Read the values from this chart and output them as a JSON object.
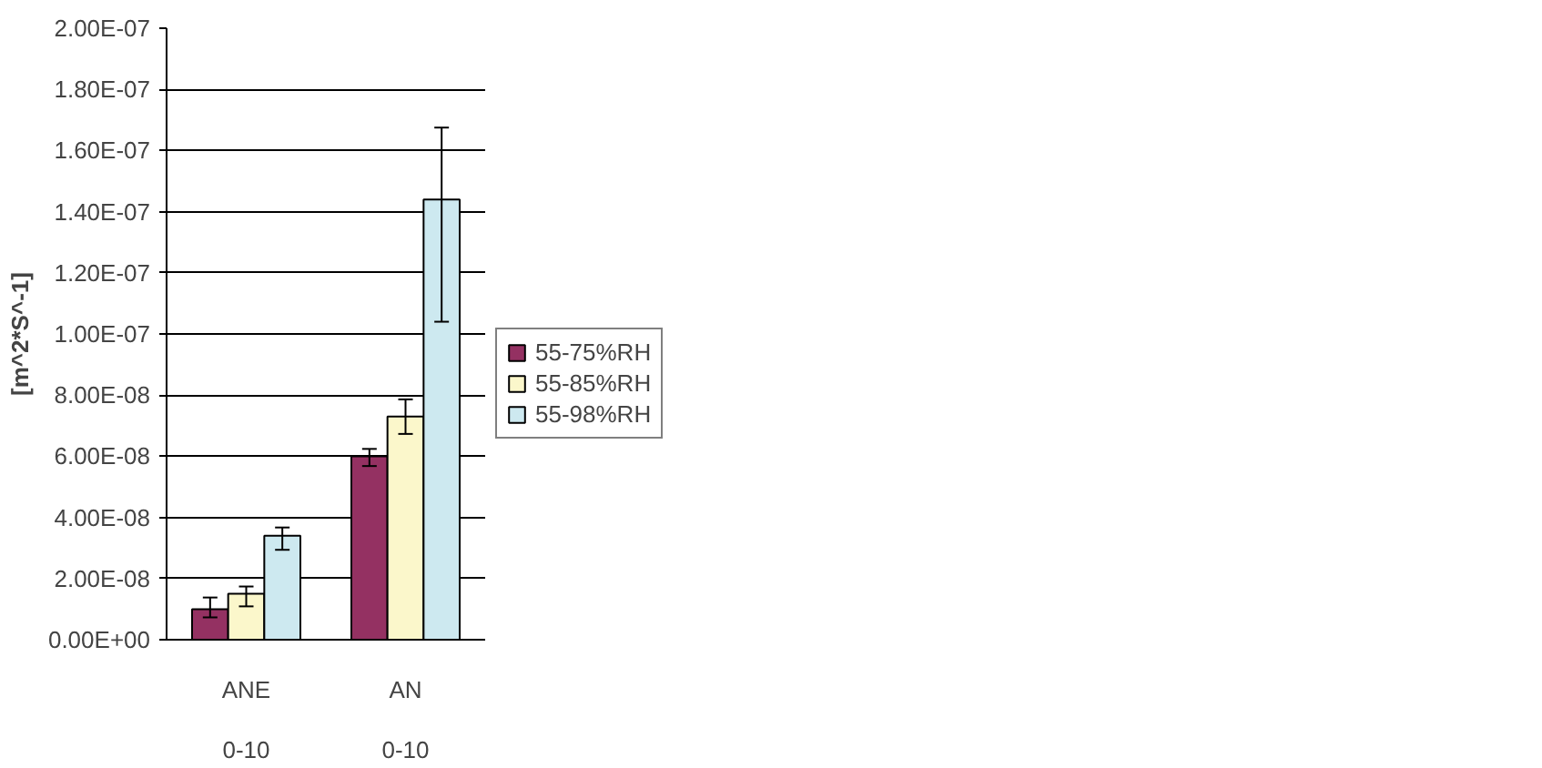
{
  "chart_data": {
    "type": "bar",
    "ylabel": "[m^2*S^-1]",
    "categories": [
      "ANE\n0-10",
      "AN\n0-10"
    ],
    "series": [
      {
        "name": "55-75%RH",
        "color": "#943162",
        "values": [
          1e-08,
          6e-08
        ],
        "errors": [
          [
            7.3e-09,
            1.38e-08
          ],
          [
            5.68e-08,
            6.24e-08
          ]
        ]
      },
      {
        "name": "55-85%RH",
        "color": "#fbf7cb",
        "values": [
          1.5e-08,
          7.3e-08
        ],
        "errors": [
          [
            1.09e-08,
            1.74e-08
          ],
          [
            6.73e-08,
            7.86e-08
          ]
        ]
      },
      {
        "name": "55-98%RH",
        "color": "#cde9f0",
        "values": [
          3.4e-08,
          1.44e-07
        ],
        "errors": [
          [
            2.94e-08,
            3.67e-08
          ],
          [
            1.04e-07,
            1.675e-07
          ]
        ]
      }
    ],
    "ylim": [
      0,
      2e-07
    ],
    "yticks": [
      {
        "value": 0,
        "label": "0.00E+00"
      },
      {
        "value": 2e-08,
        "label": "2.00E-08"
      },
      {
        "value": 4e-08,
        "label": "4.00E-08"
      },
      {
        "value": 6e-08,
        "label": "6.00E-08"
      },
      {
        "value": 8e-08,
        "label": "8.00E-08"
      },
      {
        "value": 1e-07,
        "label": "1.00E-07"
      },
      {
        "value": 1.2e-07,
        "label": "1.20E-07"
      },
      {
        "value": 1.4e-07,
        "label": "1.40E-07"
      },
      {
        "value": 1.6e-07,
        "label": "1.60E-07"
      },
      {
        "value": 1.8e-07,
        "label": "1.80E-07"
      },
      {
        "value": 2e-07,
        "label": "2.00E-07"
      }
    ],
    "grid": "y",
    "legend": "right"
  }
}
